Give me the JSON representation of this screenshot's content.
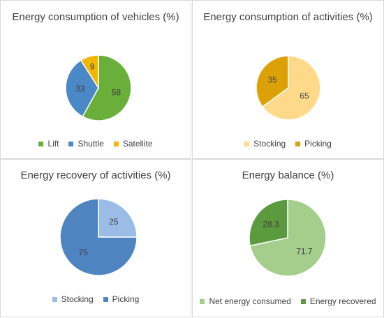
{
  "chart_data": [
    {
      "type": "pie",
      "title": "Energy consumption of vehicles (%)",
      "categories": [
        "Lift",
        "Shuttle",
        "Satellite"
      ],
      "values": [
        58,
        33,
        9
      ],
      "data_labels": [
        "58",
        "33",
        "9"
      ],
      "colors": [
        "#6aaf3a",
        "#4a88c7",
        "#f2b705"
      ],
      "legend": "bottom"
    },
    {
      "type": "pie",
      "title": "Energy consumption of activities (%)",
      "categories": [
        "Stocking",
        "Picking"
      ],
      "values": [
        65,
        35
      ],
      "data_labels": [
        "65",
        "35"
      ],
      "colors": [
        "#ffd98a",
        "#dca107"
      ],
      "legend": "bottom"
    },
    {
      "type": "pie",
      "title": "Energy recovery of activities (%)",
      "categories": [
        "Stocking",
        "Picking"
      ],
      "values": [
        25,
        75
      ],
      "data_labels": [
        "25",
        "75"
      ],
      "colors": [
        "#9bbce6",
        "#4e85c1"
      ],
      "legend": "bottom"
    },
    {
      "type": "pie",
      "title": "Energy balance (%)",
      "categories": [
        "Net energy consumed",
        "Energy recovered"
      ],
      "values": [
        71.7,
        28.3
      ],
      "data_labels": [
        "71.7",
        "28.3"
      ],
      "colors": [
        "#a5cd8b",
        "#5b9a3f"
      ],
      "legend": "bottom"
    }
  ]
}
